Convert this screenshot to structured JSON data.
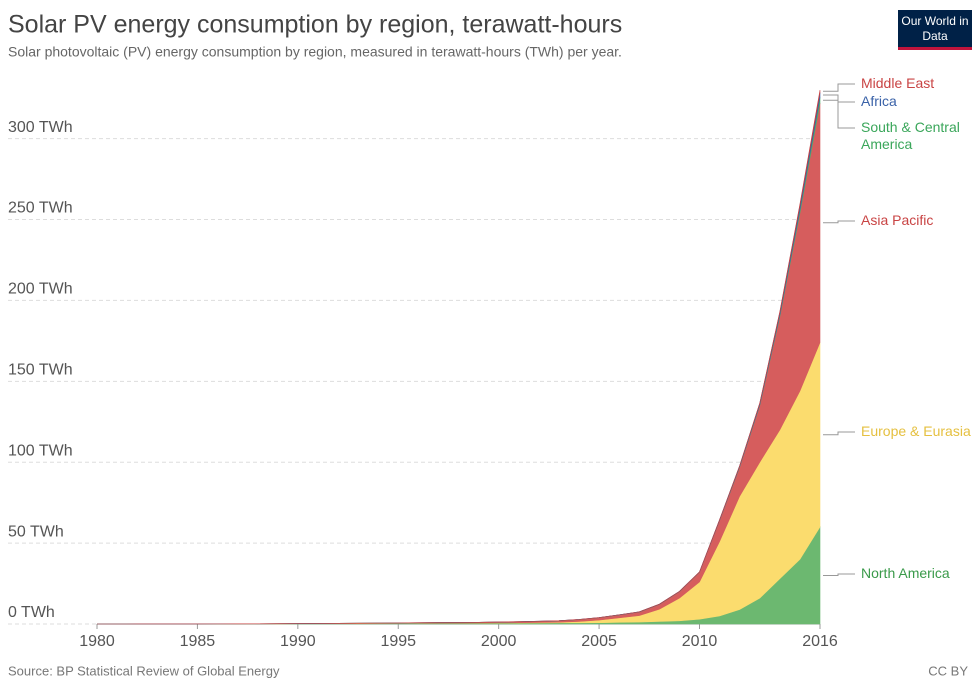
{
  "chart_data": {
    "type": "stacked-area",
    "title": "Solar PV energy consumption by region, terawatt-hours",
    "subtitle": "Solar photovoltaic (PV) energy consumption by region, measured in terawatt-hours (TWh) per year.",
    "source": "Source: BP Statistical Review of Global Energy",
    "license": "CC BY",
    "logo": "Our World in Data",
    "x": [
      1980,
      1981,
      1982,
      1983,
      1984,
      1985,
      1986,
      1987,
      1988,
      1989,
      1990,
      1991,
      1992,
      1993,
      1994,
      1995,
      1996,
      1997,
      1998,
      1999,
      2000,
      2001,
      2002,
      2003,
      2004,
      2005,
      2006,
      2007,
      2008,
      2009,
      2010,
      2011,
      2012,
      2013,
      2014,
      2015,
      2016
    ],
    "xlim": [
      1980,
      2016
    ],
    "xticks": [
      1980,
      1985,
      1990,
      1995,
      2000,
      2005,
      2010,
      2016
    ],
    "ylim": [
      0,
      335
    ],
    "yticks": [
      {
        "value": 0,
        "label": "0 TWh"
      },
      {
        "value": 50,
        "label": "50 TWh"
      },
      {
        "value": 100,
        "label": "100 TWh"
      },
      {
        "value": 150,
        "label": "150 TWh"
      },
      {
        "value": 200,
        "label": "200 TWh"
      },
      {
        "value": 250,
        "label": "250 TWh"
      },
      {
        "value": 300,
        "label": "300 TWh"
      }
    ],
    "grid": true,
    "series": [
      {
        "name": "North America",
        "color": "#6cb870",
        "label_color": "#3a9a4a",
        "values": [
          0,
          0,
          0,
          0.01,
          0.01,
          0.02,
          0.03,
          0.05,
          0.07,
          0.1,
          0.15,
          0.2,
          0.25,
          0.3,
          0.35,
          0.4,
          0.45,
          0.5,
          0.5,
          0.55,
          0.6,
          0.6,
          0.65,
          0.7,
          0.75,
          0.8,
          1.0,
          1.2,
          1.6,
          2.0,
          3,
          5,
          9,
          16,
          28,
          40,
          60
        ]
      },
      {
        "name": "Europe & Eurasia",
        "color": "#fbdc6e",
        "label_color": "#e5c040",
        "values": [
          0,
          0,
          0,
          0,
          0,
          0,
          0.01,
          0.01,
          0.01,
          0.02,
          0.02,
          0.03,
          0.03,
          0.04,
          0.05,
          0.05,
          0.06,
          0.07,
          0.08,
          0.09,
          0.1,
          0.2,
          0.3,
          0.4,
          0.8,
          1.6,
          2.8,
          4,
          7.5,
          14,
          23,
          46,
          70,
          84,
          92,
          104,
          114
        ]
      },
      {
        "name": "Asia Pacific",
        "color": "#d65d5d",
        "label_color": "#c94444",
        "values": [
          0,
          0,
          0.01,
          0.01,
          0.02,
          0.03,
          0.04,
          0.05,
          0.06,
          0.08,
          0.1,
          0.11,
          0.12,
          0.14,
          0.16,
          0.2,
          0.25,
          0.3,
          0.35,
          0.4,
          0.5,
          0.6,
          0.7,
          0.9,
          1.2,
          1.5,
          1.8,
          2.2,
          3,
          4,
          6,
          13,
          18,
          35,
          70,
          110,
          148
        ]
      },
      {
        "name": "South & Central America",
        "color": "#4caf6a",
        "label_color": "#3aa65a",
        "values": [
          0,
          0,
          0,
          0,
          0,
          0,
          0,
          0,
          0,
          0,
          0.01,
          0.01,
          0.01,
          0.01,
          0.01,
          0.02,
          0.02,
          0.02,
          0.02,
          0.02,
          0.03,
          0.03,
          0.03,
          0.03,
          0.03,
          0.04,
          0.05,
          0.06,
          0.07,
          0.08,
          0.1,
          0.15,
          0.3,
          0.5,
          1,
          2,
          3.5
        ]
      },
      {
        "name": "Africa",
        "color": "#3a5fa8",
        "label_color": "#3a62a8",
        "values": [
          0,
          0,
          0,
          0,
          0,
          0,
          0,
          0,
          0,
          0,
          0.01,
          0.01,
          0.01,
          0.01,
          0.01,
          0.01,
          0.01,
          0.01,
          0.01,
          0.01,
          0.02,
          0.02,
          0.03,
          0.03,
          0.04,
          0.05,
          0.06,
          0.07,
          0.08,
          0.09,
          0.1,
          0.3,
          0.5,
          0.8,
          1.5,
          2.5,
          3
        ]
      },
      {
        "name": "Middle East",
        "color": "#c94040",
        "label_color": "#c94444",
        "values": [
          0,
          0,
          0,
          0,
          0,
          0,
          0,
          0,
          0,
          0,
          0,
          0,
          0,
          0,
          0,
          0,
          0,
          0,
          0,
          0,
          0,
          0,
          0,
          0,
          0,
          0.01,
          0.01,
          0.02,
          0.02,
          0.03,
          0.04,
          0.06,
          0.1,
          0.3,
          0.6,
          1,
          1.5
        ]
      }
    ]
  }
}
